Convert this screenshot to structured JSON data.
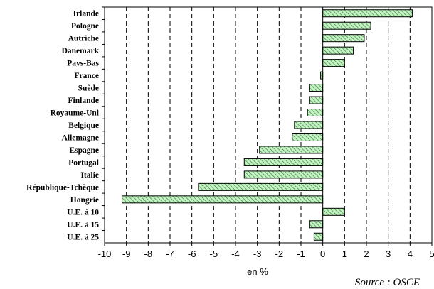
{
  "chart_data": {
    "type": "bar",
    "orientation": "horizontal",
    "categories": [
      "Irlande",
      "Pologne",
      "Autriche",
      "Danemark",
      "Pays-Bas",
      "France",
      "Suède",
      "Finlande",
      "Royaume-Uni",
      "Belgique",
      "Allemagne",
      "Espagne",
      "Portugal",
      "Italie",
      "République-Tchèque",
      "Hongrie",
      "U.E. à 10",
      "U.E. à 15",
      "U.E. à 25"
    ],
    "values": [
      4.1,
      2.2,
      1.9,
      1.4,
      1.0,
      -0.1,
      -0.6,
      -0.6,
      -0.7,
      -1.3,
      -1.4,
      -2.9,
      -3.6,
      -3.6,
      -5.7,
      -9.2,
      1.0,
      -0.6,
      -0.4
    ],
    "xlim": [
      -10,
      5
    ],
    "xticks": [
      "-10",
      "-9",
      "-8",
      "-7",
      "-6",
      "-5",
      "-4",
      "-3",
      "-2",
      "-1",
      "0",
      "1",
      "2",
      "3",
      "4",
      "5"
    ],
    "xlabel": "en %",
    "grid": "vertical dashed",
    "bar_color": "#c8f0c8",
    "bar_hatch_color": "#228822",
    "source": "Source : OSCE"
  }
}
